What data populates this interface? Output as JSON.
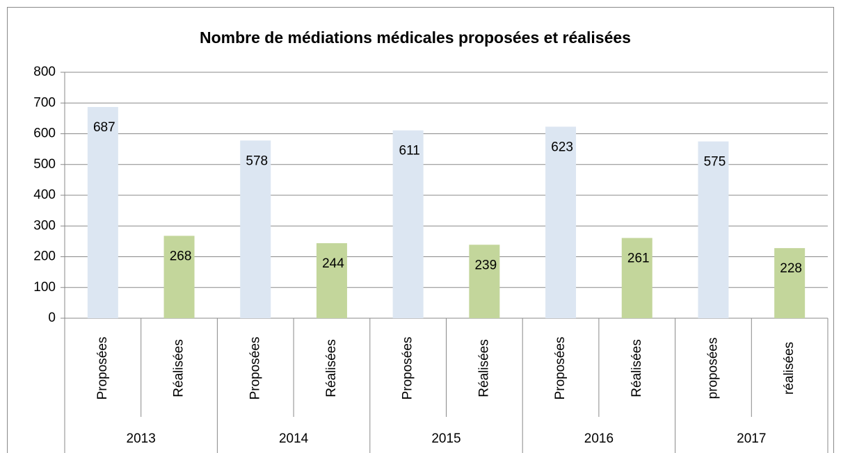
{
  "chart_data": {
    "type": "bar",
    "title": "Nombre de médiations médicales proposées et réalisées",
    "categories": [
      "Proposées",
      "Réalisées",
      "Proposées",
      "Réalisées",
      "Proposées",
      "Réalisées",
      "Proposées",
      "Réalisées",
      "proposées",
      "réalisées"
    ],
    "groups": [
      "2013",
      "2014",
      "2015",
      "2016",
      "2017"
    ],
    "values": [
      687,
      268,
      578,
      244,
      611,
      239,
      623,
      261,
      575,
      228
    ],
    "colors": [
      "#dce6f2",
      "#c3d69b",
      "#dce6f2",
      "#c3d69b",
      "#dce6f2",
      "#c3d69b",
      "#dce6f2",
      "#c3d69b",
      "#dce6f2",
      "#c3d69b"
    ],
    "ylim": [
      0,
      800
    ],
    "yticks": [
      0,
      100,
      200,
      300,
      400,
      500,
      600,
      700,
      800
    ],
    "grid": true
  }
}
